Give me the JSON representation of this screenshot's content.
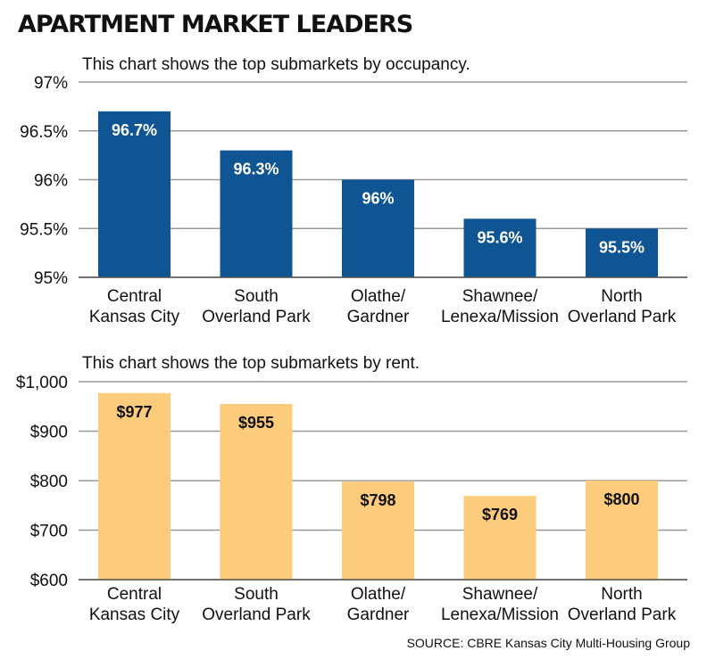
{
  "title": "APARTMENT MARKET LEADERS",
  "source": "SOURCE: CBRE Kansas City Multi-Housing Group",
  "chart_data": [
    {
      "type": "bar",
      "subtitle": "This chart shows the top submarkets by occupancy.",
      "categories": [
        [
          "Central",
          "Kansas City"
        ],
        [
          "South",
          "Overland Park"
        ],
        [
          "Olathe/",
          "Gardner"
        ],
        [
          "Shawnee/",
          "Lenexa/Mission"
        ],
        [
          "North",
          "Overland Park"
        ]
      ],
      "values": [
        96.7,
        96.3,
        96.0,
        95.6,
        95.5
      ],
      "data_labels": [
        "96.7%",
        "96.3%",
        "96%",
        "95.6%",
        "95.5%"
      ],
      "yticks": [
        95,
        95.5,
        96,
        96.5,
        97
      ],
      "ytick_labels": [
        "95%",
        "95.5%",
        "96%",
        "96.5%",
        "97%"
      ],
      "ylim": [
        95,
        97
      ],
      "grid": true,
      "bar_color": "#0f5594",
      "label_color": "#ffffff"
    },
    {
      "type": "bar",
      "subtitle": "This chart shows the top submarkets by rent.",
      "categories": [
        [
          "Central",
          "Kansas City"
        ],
        [
          "South",
          "Overland Park"
        ],
        [
          "Olathe/",
          "Gardner"
        ],
        [
          "Shawnee/",
          "Lenexa/Mission"
        ],
        [
          "North",
          "Overland Park"
        ]
      ],
      "values": [
        977,
        955,
        798,
        769,
        800
      ],
      "data_labels": [
        "$977",
        "$955",
        "$798",
        "$769",
        "$800"
      ],
      "yticks": [
        600,
        700,
        800,
        900,
        1000
      ],
      "ytick_labels": [
        "$600",
        "$700",
        "$800",
        "$900",
        "$1,000"
      ],
      "ylim": [
        600,
        1000
      ],
      "grid": true,
      "bar_color": "#fdcb7c",
      "label_color": "#111111"
    }
  ]
}
